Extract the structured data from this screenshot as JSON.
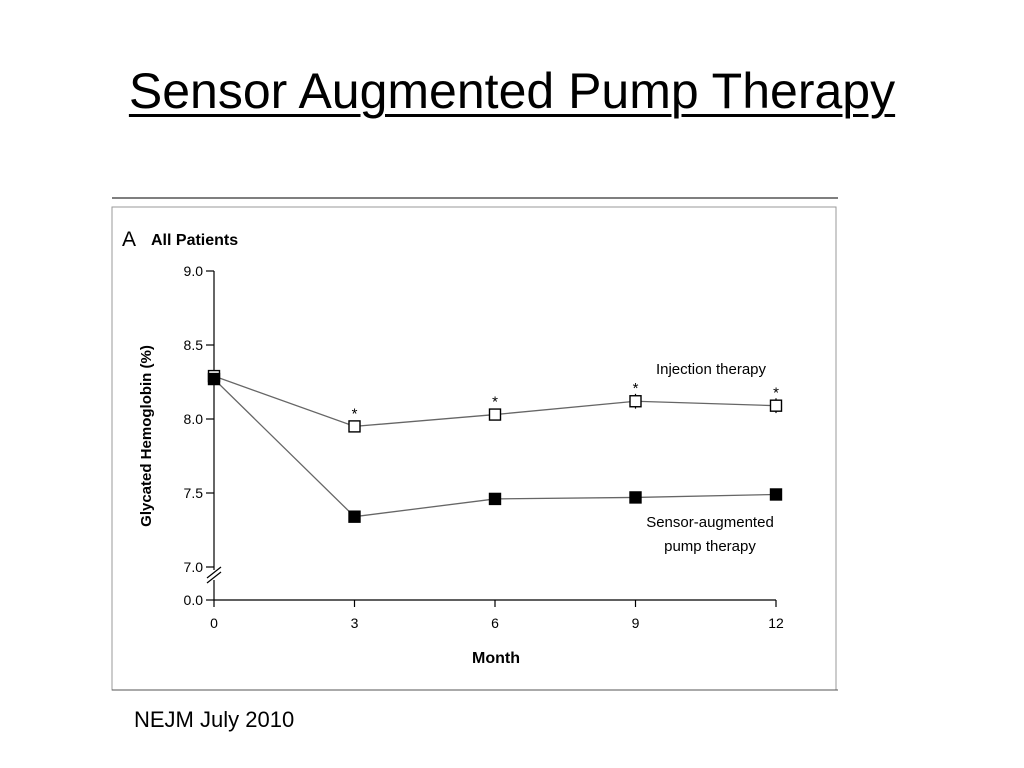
{
  "slide": {
    "title": "Sensor Augmented Pump Therapy",
    "source": "NEJM July 2010"
  },
  "chart_data": {
    "type": "line",
    "panel_letter": "A",
    "panel_title": "All Patients",
    "xlabel": "Month",
    "ylabel": "Glycated Hemoglobin (%)",
    "x": [
      0,
      3,
      6,
      9,
      12
    ],
    "xlim": [
      0,
      12
    ],
    "ylim": [
      7.0,
      9.0
    ],
    "x_ticks": [
      "0",
      "3",
      "6",
      "9",
      "12"
    ],
    "y_ticks": [
      "9.0",
      "8.5",
      "8.0",
      "7.5",
      "7.0"
    ],
    "y_tick_values": [
      9.0,
      8.5,
      8.0,
      7.5,
      7.0
    ],
    "axis_break": true,
    "y_break_label": "0.0",
    "grid": false,
    "series": [
      {
        "name": "Injection therapy",
        "marker": "open-square",
        "values": [
          8.29,
          7.95,
          8.03,
          8.12,
          8.09
        ],
        "error": [
          0.02,
          0.03,
          0.04,
          0.05,
          0.05
        ],
        "significant": [
          false,
          true,
          true,
          true,
          true
        ],
        "significance_mark": "*",
        "label_lines": [
          "Injection therapy"
        ]
      },
      {
        "name": "Sensor-augmented pump therapy",
        "marker": "filled-square",
        "values": [
          8.27,
          7.34,
          7.46,
          7.47,
          7.49
        ],
        "error": [
          0.02,
          0.03,
          0.03,
          0.03,
          0.03
        ],
        "significant": [
          false,
          false,
          false,
          false,
          false
        ],
        "label_lines": [
          "Sensor-augmented",
          "pump therapy"
        ]
      }
    ],
    "colors": {
      "line": "#666666",
      "marker_edge": "#000000",
      "frame": "#999999"
    }
  }
}
